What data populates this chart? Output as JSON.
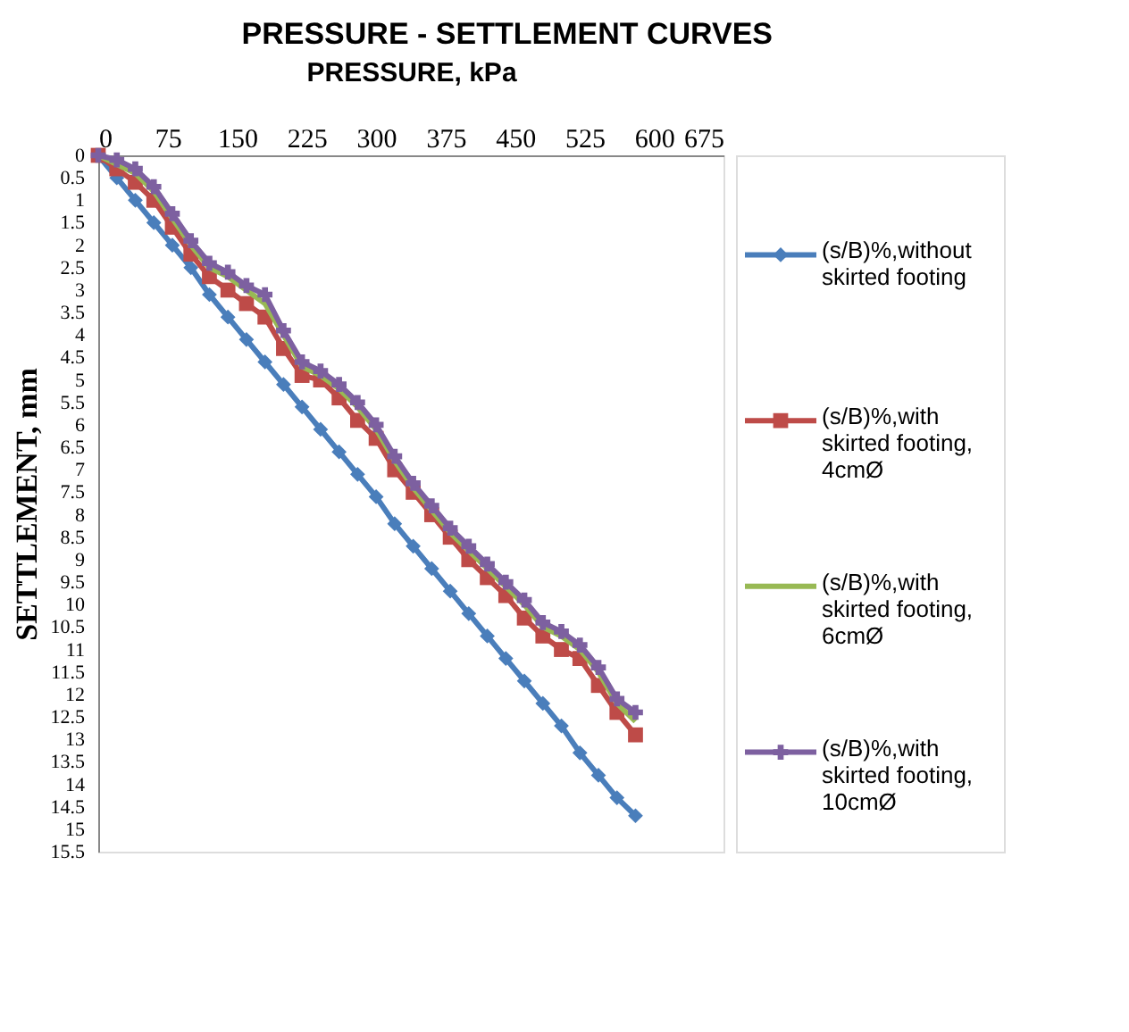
{
  "chart_data": {
    "type": "line",
    "title": "PRESSURE - SETTLEMENT CURVES",
    "xlabel": "PRESSURE, kPa",
    "ylabel": "SETTLEMENT, mm",
    "x": [
      0,
      20,
      40,
      60,
      80,
      100,
      120,
      140,
      160,
      180,
      200,
      220,
      240,
      260,
      280,
      300,
      320,
      340,
      360,
      380,
      400,
      420,
      440,
      460,
      480,
      500,
      520,
      540,
      560,
      580
    ],
    "series": [
      {
        "name": "(s/B)%,without skirted footing",
        "color": "#4a7ebb",
        "marker": "diamond",
        "values": [
          0,
          0.5,
          1.0,
          1.5,
          2.0,
          2.5,
          3.1,
          3.6,
          4.1,
          4.6,
          5.1,
          5.6,
          6.1,
          6.6,
          7.1,
          7.6,
          8.2,
          8.7,
          9.2,
          9.7,
          10.2,
          10.7,
          11.2,
          11.7,
          12.2,
          12.7,
          13.3,
          13.8,
          14.3,
          14.7
        ]
      },
      {
        "name": "(s/B)%,with skirted footing, 4cmØ",
        "color": "#be4b48",
        "marker": "square",
        "values": [
          0,
          0.3,
          0.6,
          1.0,
          1.6,
          2.2,
          2.7,
          3.0,
          3.3,
          3.6,
          4.3,
          4.9,
          5.0,
          5.4,
          5.9,
          6.3,
          7.0,
          7.5,
          8.0,
          8.5,
          9.0,
          9.4,
          9.8,
          10.3,
          10.7,
          11.0,
          11.2,
          11.8,
          12.4,
          12.9
        ]
      },
      {
        "name": "(s/B)%,with skirted footing, 6cmØ",
        "color": "#98b954",
        "marker": "none",
        "values": [
          0,
          0.2,
          0.4,
          0.8,
          1.4,
          2.0,
          2.5,
          2.7,
          3.0,
          3.3,
          4.0,
          4.7,
          4.9,
          5.2,
          5.6,
          6.1,
          6.8,
          7.4,
          7.9,
          8.4,
          8.8,
          9.2,
          9.6,
          10.0,
          10.5,
          10.7,
          11.0,
          11.5,
          12.2,
          12.6
        ]
      },
      {
        "name": "(s/B)%,with skirted footing, 10cmØ",
        "color": "#7d60a0",
        "marker": "cross",
        "values": [
          0,
          0.1,
          0.3,
          0.7,
          1.3,
          1.9,
          2.4,
          2.6,
          2.9,
          3.1,
          3.9,
          4.6,
          4.8,
          5.1,
          5.5,
          6.0,
          6.7,
          7.3,
          7.8,
          8.3,
          8.7,
          9.1,
          9.5,
          9.9,
          10.4,
          10.6,
          10.9,
          11.4,
          12.1,
          12.4
        ]
      }
    ],
    "xlim": [
      0,
      675
    ],
    "xticks": [
      0,
      75,
      150,
      225,
      300,
      375,
      450,
      525,
      600,
      675
    ],
    "ylim": [
      15.5,
      0
    ],
    "yticks": [
      0,
      0.5,
      1,
      1.5,
      2,
      2.5,
      3,
      3.5,
      4,
      4.5,
      5,
      5.5,
      6,
      6.5,
      7,
      7.5,
      8,
      8.5,
      9,
      9.5,
      10,
      10.5,
      11,
      11.5,
      12,
      12.5,
      13,
      13.5,
      14,
      14.5,
      15,
      15.5
    ],
    "grid": false,
    "legend": "right",
    "line_style": "solid"
  }
}
